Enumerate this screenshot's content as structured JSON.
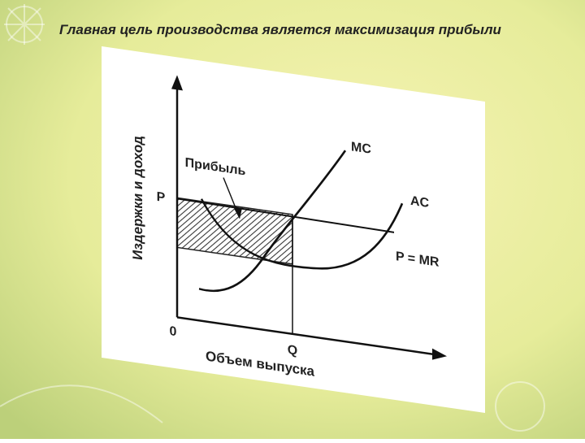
{
  "header": {
    "title": "Главная цель производства является максимизация прибыли"
  },
  "diagram": {
    "y_axis_label": "Издержки и доход",
    "x_axis_label": "Объем выпуска",
    "origin_label": "0",
    "price_label": "P",
    "quantity_label": "Q",
    "profit_label": "Прибыль",
    "mc_label": "MC",
    "ac_label": "AC",
    "mr_label": "P = MR"
  }
}
